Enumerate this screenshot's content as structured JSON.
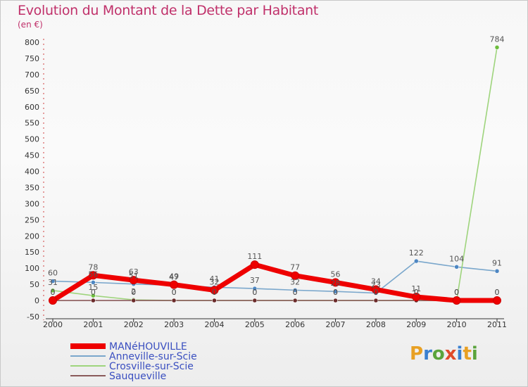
{
  "title": "Evolution du Montant de la Dette par Habitant",
  "subtitle": "(en €)",
  "logo": {
    "text": "Proxiti",
    "colors": [
      "#e8a023",
      "#3a7fd0",
      "#5aa43c",
      "#e04a2a",
      "#3a7fd0",
      "#e8a023",
      "#5aa43c"
    ]
  },
  "chart_data": {
    "type": "line",
    "title": "Evolution du Montant de la Dette par Habitant",
    "ylabel": "(en €)",
    "x": [
      "2000",
      "2001",
      "2002",
      "2003",
      "2004",
      "2005",
      "2006",
      "2007",
      "2008",
      "2009",
      "2010",
      "2011"
    ],
    "ylim": [
      -50,
      800
    ],
    "yticks": [
      -50,
      0,
      50,
      100,
      150,
      200,
      250,
      300,
      350,
      400,
      450,
      500,
      550,
      600,
      650,
      700,
      750,
      800
    ],
    "series": [
      {
        "name": "Anneville-sur-Scie",
        "color": "#7aa7cc",
        "marker": "#4d86c2",
        "values": [
          60,
          56,
          51,
          47,
          41,
          37,
          32,
          28,
          23,
          122,
          104,
          91
        ],
        "labels": [
          "60",
          "56",
          "51",
          "47",
          "41",
          "37",
          "32",
          "28",
          "23",
          "122",
          "104",
          "91"
        ]
      },
      {
        "name": "Crosville-sur-Scie",
        "color": "#9ed47c",
        "marker": "#6cbd3c",
        "values": [
          31,
          15,
          2,
          0,
          0,
          0,
          0,
          0,
          0,
          0,
          0,
          784
        ],
        "labels": [
          "31",
          "15",
          "2",
          "0",
          "0",
          "0",
          "0",
          "0",
          "0",
          "0",
          "0",
          "784"
        ]
      },
      {
        "name": "Sauqueville",
        "color": "#8a5a5a",
        "marker": "#6b2a2a",
        "values": [
          0,
          0,
          0,
          0,
          0,
          0,
          0,
          0,
          0,
          0,
          0,
          0
        ],
        "labels": [
          "0",
          "0",
          "0",
          "0",
          "0",
          "0",
          "0",
          "0",
          "0",
          "0",
          "0",
          "0"
        ]
      },
      {
        "name": "MANéHOUVILLE",
        "color": "#ee0000",
        "marker": "#ee0000",
        "values": [
          0,
          78,
          63,
          49,
          32,
          111,
          77,
          56,
          34,
          11,
          0,
          0
        ],
        "labels": [
          "0",
          "78",
          "63",
          "49",
          "32",
          "111",
          "77",
          "56",
          "34",
          "11",
          "0",
          "0"
        ]
      }
    ],
    "legend": [
      {
        "name": "MANéHOUVILLE",
        "color": "#ee0000",
        "thick": true
      },
      {
        "name": "Anneville-sur-Scie",
        "color": "#7aa7cc",
        "thick": false
      },
      {
        "name": "Crosville-sur-Scie",
        "color": "#9ed47c",
        "thick": false
      },
      {
        "name": "Sauqueville",
        "color": "#8a5a5a",
        "thick": false
      }
    ],
    "legend_position": "bottom-left",
    "grid": false
  }
}
